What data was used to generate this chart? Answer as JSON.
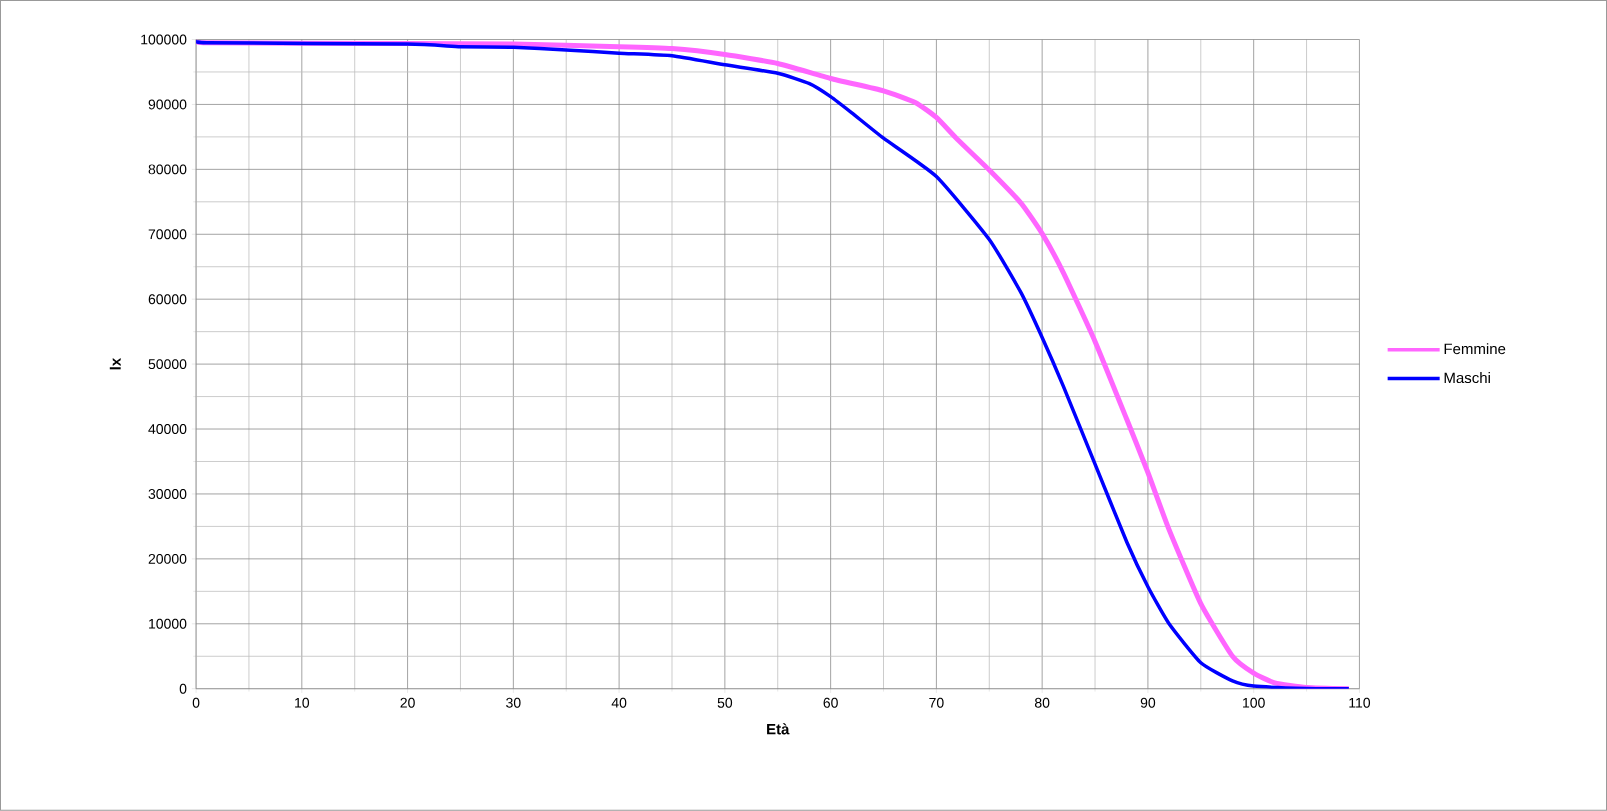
{
  "chart_data": {
    "type": "line",
    "xlabel": "Età",
    "ylabel": "lx",
    "xlim": [
      0,
      110
    ],
    "xticks": [
      0,
      10,
      20,
      30,
      40,
      50,
      60,
      70,
      80,
      90,
      100,
      110
    ],
    "ylim": [
      0,
      100000
    ],
    "yticks": [
      0,
      10000,
      20000,
      30000,
      40000,
      50000,
      60000,
      70000,
      80000,
      90000,
      100000
    ],
    "grid": true,
    "legend": "right",
    "marker": "none",
    "line_style": "solid",
    "series": [
      {
        "name": "Femmine",
        "color": "#ff66ff",
        "x": [
          0,
          1,
          20,
          30,
          40,
          45,
          50,
          55,
          60,
          65,
          68,
          70,
          72,
          75,
          78,
          80,
          82,
          85,
          88,
          90,
          92,
          95,
          98,
          100,
          102,
          105,
          109
        ],
        "values": [
          100000,
          99500,
          99400,
          99300,
          98900,
          98600,
          97700,
          96300,
          94000,
          92100,
          90300,
          88000,
          84600,
          79900,
          74800,
          70100,
          64100,
          53500,
          41500,
          33300,
          24500,
          13100,
          5000,
          2400,
          900,
          200,
          0
        ]
      },
      {
        "name": "Maschi",
        "color": "#0000ff",
        "x": [
          0,
          1,
          20,
          25,
          30,
          35,
          40,
          45,
          50,
          55,
          58,
          60,
          62,
          65,
          70,
          75,
          78,
          80,
          82,
          85,
          88,
          90,
          92,
          95,
          98,
          100,
          105,
          109
        ],
        "values": [
          100000,
          99500,
          99300,
          98900,
          98800,
          98400,
          97900,
          97500,
          96100,
          94800,
          93200,
          91200,
          88700,
          84800,
          78900,
          69200,
          61000,
          54100,
          46600,
          34600,
          22600,
          15700,
          10000,
          4000,
          1200,
          400,
          50,
          0
        ]
      }
    ]
  }
}
